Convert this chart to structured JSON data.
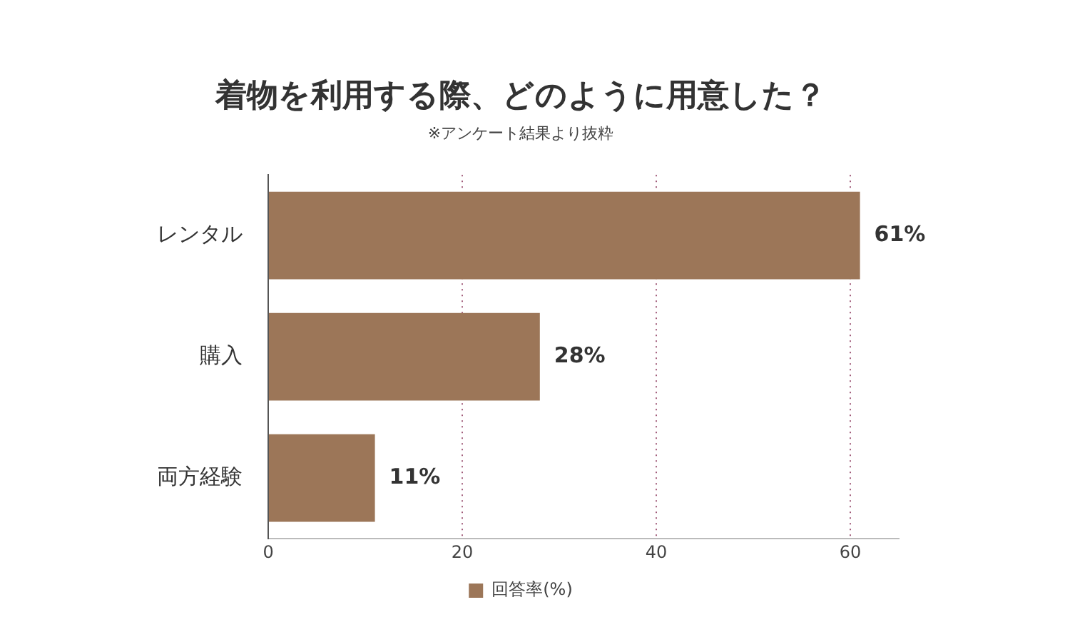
{
  "chart_data": {
    "type": "bar",
    "orientation": "horizontal",
    "title": "着物を利用する際、どのように用意した？",
    "subtitle": "※アンケート結果より抜粋",
    "categories": [
      "レンタル",
      "購入",
      "両方経験"
    ],
    "series": [
      {
        "name": "回答率(%)",
        "color": "#9c7658",
        "values": [
          61,
          28,
          11
        ],
        "value_labels": [
          "61%",
          "28%",
          "11%"
        ]
      }
    ],
    "xlim": [
      0,
      65
    ],
    "xticks": [
      0,
      20,
      40,
      60
    ],
    "grid": "x",
    "legend": "bottom"
  }
}
